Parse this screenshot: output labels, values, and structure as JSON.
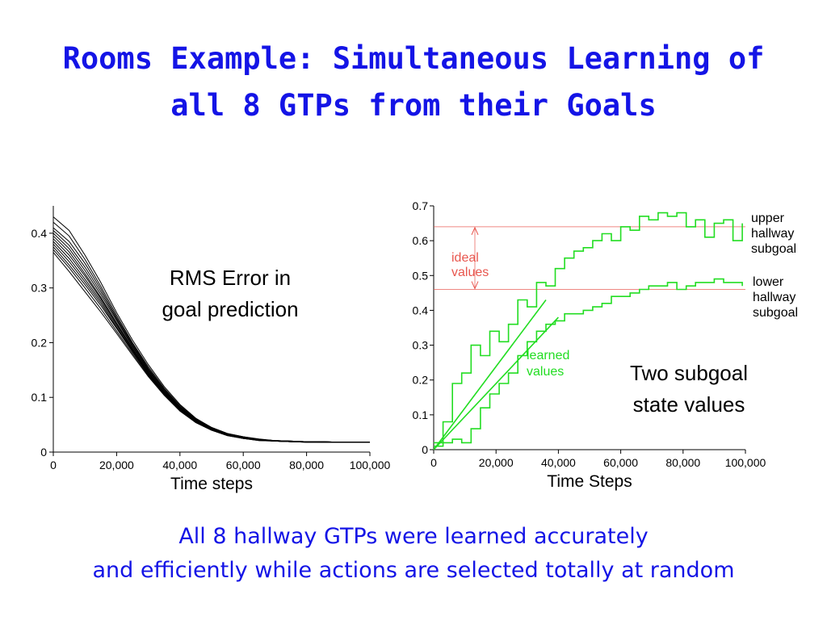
{
  "slide": {
    "title_lines": [
      "Rooms Example: Simultaneous Learning of",
      "all 8 GTPs from their Goals"
    ],
    "caption_lines": [
      "All 8 hallway GTPs were learned accurately",
      "and efficiently while actions are selected totally at random"
    ]
  },
  "colors": {
    "title": "#1414e6",
    "learned": "#22dd22",
    "ideal": "#e8564e",
    "rms": "#000000"
  },
  "chart_data": [
    {
      "type": "line",
      "title_lines": [
        "RMS Error in",
        "goal prediction"
      ],
      "xlabel": "Time steps",
      "ylabel": "",
      "xlim": [
        0,
        100000
      ],
      "ylim": [
        0,
        0.45
      ],
      "x_ticks": [
        0,
        20000,
        40000,
        60000,
        80000,
        100000
      ],
      "x_tick_labels": [
        "0",
        "20,000",
        "40,000",
        "60,000",
        "80,000",
        "100,000"
      ],
      "y_ticks": [
        0,
        0.1,
        0.2,
        0.3,
        0.4
      ],
      "y_tick_labels": [
        "0",
        "0.1",
        "0.2",
        "0.3",
        "0.4"
      ],
      "grid": false,
      "x": [
        0,
        5000,
        10000,
        15000,
        20000,
        25000,
        30000,
        35000,
        40000,
        45000,
        50000,
        55000,
        60000,
        65000,
        70000,
        75000,
        80000,
        85000,
        90000,
        95000,
        100000
      ],
      "series": [
        {
          "values": [
            0.43,
            0.405,
            0.36,
            0.31,
            0.255,
            0.205,
            0.16,
            0.12,
            0.087,
            0.062,
            0.045,
            0.034,
            0.028,
            0.024,
            0.021,
            0.02,
            0.019,
            0.019,
            0.018,
            0.018,
            0.018
          ]
        },
        {
          "values": [
            0.42,
            0.395,
            0.352,
            0.303,
            0.25,
            0.2,
            0.156,
            0.117,
            0.085,
            0.061,
            0.045,
            0.034,
            0.028,
            0.023,
            0.021,
            0.02,
            0.019,
            0.019,
            0.018,
            0.018,
            0.018
          ]
        },
        {
          "values": [
            0.41,
            0.385,
            0.345,
            0.298,
            0.246,
            0.198,
            0.153,
            0.115,
            0.083,
            0.06,
            0.044,
            0.033,
            0.027,
            0.023,
            0.021,
            0.02,
            0.019,
            0.019,
            0.018,
            0.018,
            0.018
          ]
        },
        {
          "values": [
            0.405,
            0.378,
            0.338,
            0.293,
            0.243,
            0.195,
            0.151,
            0.113,
            0.082,
            0.059,
            0.043,
            0.033,
            0.027,
            0.023,
            0.021,
            0.02,
            0.019,
            0.019,
            0.018,
            0.018,
            0.018
          ]
        },
        {
          "values": [
            0.4,
            0.372,
            0.332,
            0.288,
            0.24,
            0.193,
            0.149,
            0.112,
            0.081,
            0.058,
            0.043,
            0.033,
            0.027,
            0.023,
            0.021,
            0.02,
            0.019,
            0.019,
            0.018,
            0.018,
            0.018
          ]
        },
        {
          "values": [
            0.395,
            0.366,
            0.326,
            0.283,
            0.236,
            0.19,
            0.147,
            0.11,
            0.08,
            0.058,
            0.042,
            0.032,
            0.026,
            0.022,
            0.02,
            0.019,
            0.019,
            0.018,
            0.018,
            0.018,
            0.018
          ]
        },
        {
          "values": [
            0.39,
            0.36,
            0.322,
            0.28,
            0.234,
            0.189,
            0.146,
            0.109,
            0.079,
            0.057,
            0.042,
            0.032,
            0.026,
            0.022,
            0.02,
            0.019,
            0.019,
            0.018,
            0.018,
            0.018,
            0.018
          ]
        },
        {
          "values": [
            0.385,
            0.354,
            0.316,
            0.276,
            0.231,
            0.187,
            0.145,
            0.108,
            0.078,
            0.056,
            0.041,
            0.031,
            0.026,
            0.022,
            0.02,
            0.019,
            0.019,
            0.018,
            0.018,
            0.018,
            0.018
          ]
        },
        {
          "values": [
            0.38,
            0.348,
            0.311,
            0.272,
            0.228,
            0.185,
            0.143,
            0.107,
            0.077,
            0.055,
            0.041,
            0.031,
            0.025,
            0.022,
            0.02,
            0.019,
            0.018,
            0.018,
            0.018,
            0.018,
            0.018
          ]
        },
        {
          "values": [
            0.375,
            0.342,
            0.306,
            0.268,
            0.226,
            0.183,
            0.142,
            0.106,
            0.077,
            0.055,
            0.04,
            0.031,
            0.025,
            0.022,
            0.02,
            0.019,
            0.018,
            0.018,
            0.018,
            0.018,
            0.018
          ]
        },
        {
          "values": [
            0.37,
            0.337,
            0.3,
            0.262,
            0.221,
            0.18,
            0.14,
            0.105,
            0.076,
            0.054,
            0.04,
            0.03,
            0.025,
            0.021,
            0.02,
            0.019,
            0.018,
            0.018,
            0.018,
            0.018,
            0.018
          ]
        },
        {
          "values": [
            0.365,
            0.33,
            0.293,
            0.256,
            0.217,
            0.177,
            0.138,
            0.104,
            0.075,
            0.054,
            0.04,
            0.03,
            0.025,
            0.021,
            0.02,
            0.019,
            0.018,
            0.018,
            0.018,
            0.018,
            0.018
          ]
        }
      ]
    },
    {
      "type": "line",
      "title_lines": [
        "Two subgoal",
        "state values"
      ],
      "xlabel": "Time Steps",
      "ylabel": "",
      "xlim": [
        0,
        100000
      ],
      "ylim": [
        0,
        0.7
      ],
      "x_ticks": [
        0,
        20000,
        40000,
        60000,
        80000,
        100000
      ],
      "x_tick_labels": [
        "0",
        "20,000",
        "40,000",
        "60,000",
        "80,000",
        "100,000"
      ],
      "y_ticks": [
        0,
        0.1,
        0.2,
        0.3,
        0.4,
        0.5,
        0.6,
        0.7
      ],
      "y_tick_labels": [
        "0",
        "0.1",
        "0.2",
        "0.3",
        "0.4",
        "0.5",
        "0.6",
        "0.7"
      ],
      "grid": false,
      "ideal_values": [
        0.64,
        0.46
      ],
      "annotations": {
        "ideal_lines": [
          "ideal",
          "values"
        ],
        "learned_lines": [
          "learned",
          "values"
        ],
        "upper_lines": [
          "upper",
          "hallway",
          "subgoal"
        ],
        "lower_lines": [
          "lower",
          "hallway",
          "subgoal"
        ]
      },
      "series": [
        {
          "name": "upper hallway subgoal",
          "x": [
            0,
            3000,
            6000,
            9000,
            12000,
            15000,
            18000,
            21000,
            24000,
            27000,
            30000,
            33000,
            36000,
            39000,
            42000,
            45000,
            48000,
            51000,
            54000,
            57000,
            60000,
            63000,
            66000,
            69000,
            72000,
            75000,
            78000,
            81000,
            84000,
            87000,
            90000,
            93000,
            96000,
            99000
          ],
          "values": [
            0.02,
            0.08,
            0.19,
            0.22,
            0.3,
            0.27,
            0.34,
            0.31,
            0.36,
            0.43,
            0.41,
            0.48,
            0.47,
            0.52,
            0.55,
            0.57,
            0.58,
            0.6,
            0.62,
            0.6,
            0.64,
            0.63,
            0.67,
            0.66,
            0.68,
            0.67,
            0.68,
            0.64,
            0.66,
            0.61,
            0.65,
            0.66,
            0.6,
            0.65
          ]
        },
        {
          "name": "lower hallway subgoal",
          "x": [
            0,
            3000,
            6000,
            9000,
            12000,
            15000,
            18000,
            21000,
            24000,
            27000,
            30000,
            33000,
            36000,
            39000,
            42000,
            45000,
            48000,
            51000,
            54000,
            57000,
            60000,
            63000,
            66000,
            69000,
            72000,
            75000,
            78000,
            81000,
            84000,
            87000,
            90000,
            93000,
            96000,
            99000
          ],
          "values": [
            0.01,
            0.02,
            0.03,
            0.02,
            0.06,
            0.12,
            0.16,
            0.19,
            0.22,
            0.27,
            0.31,
            0.34,
            0.36,
            0.37,
            0.39,
            0.39,
            0.4,
            0.41,
            0.42,
            0.44,
            0.44,
            0.45,
            0.46,
            0.47,
            0.47,
            0.48,
            0.46,
            0.47,
            0.48,
            0.48,
            0.49,
            0.48,
            0.48,
            0.47
          ]
        },
        {
          "name": "",
          "x": [
            0,
            36000
          ],
          "values": [
            0.0,
            0.43
          ]
        },
        {
          "name": "",
          "x": [
            0,
            40000
          ],
          "values": [
            0.0,
            0.38
          ]
        }
      ]
    }
  ]
}
